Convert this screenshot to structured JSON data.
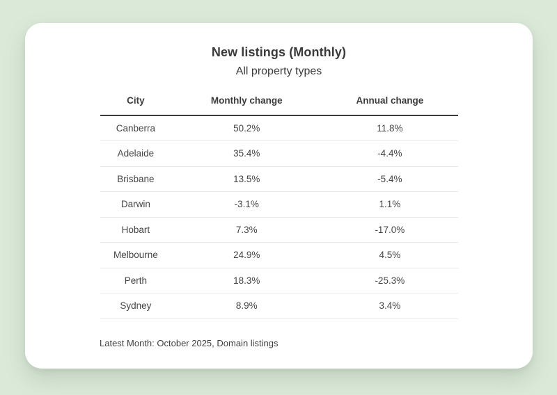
{
  "chart_data": {
    "type": "table",
    "title": "New listings (Monthly)",
    "subtitle": "All property types",
    "columns": [
      "City",
      "Monthly change",
      "Annual change"
    ],
    "rows": [
      [
        "Canberra",
        "50.2%",
        "11.8%"
      ],
      [
        "Adelaide",
        "35.4%",
        "-4.4%"
      ],
      [
        "Brisbane",
        "13.5%",
        "-5.4%"
      ],
      [
        "Darwin",
        "-3.1%",
        "1.1%"
      ],
      [
        "Hobart",
        "7.3%",
        "-17.0%"
      ],
      [
        "Melbourne",
        "24.9%",
        "4.5%"
      ],
      [
        "Perth",
        "18.3%",
        "-25.3%"
      ],
      [
        "Sydney",
        "8.9%",
        "3.4%"
      ]
    ],
    "note": "Latest Month: October 2025, Domain listings",
    "layout_hints": {
      "all_columns_center_aligned": true,
      "header_rule": "thick",
      "row_dividers": "thin"
    }
  },
  "colors": {
    "page_background": "#dbe9d9",
    "card_background": "#ffffff",
    "title_text": "#3a3a3a",
    "body_text": "#454545",
    "header_rule": "#3a3a3a",
    "row_divider": "#e9e9e9"
  }
}
